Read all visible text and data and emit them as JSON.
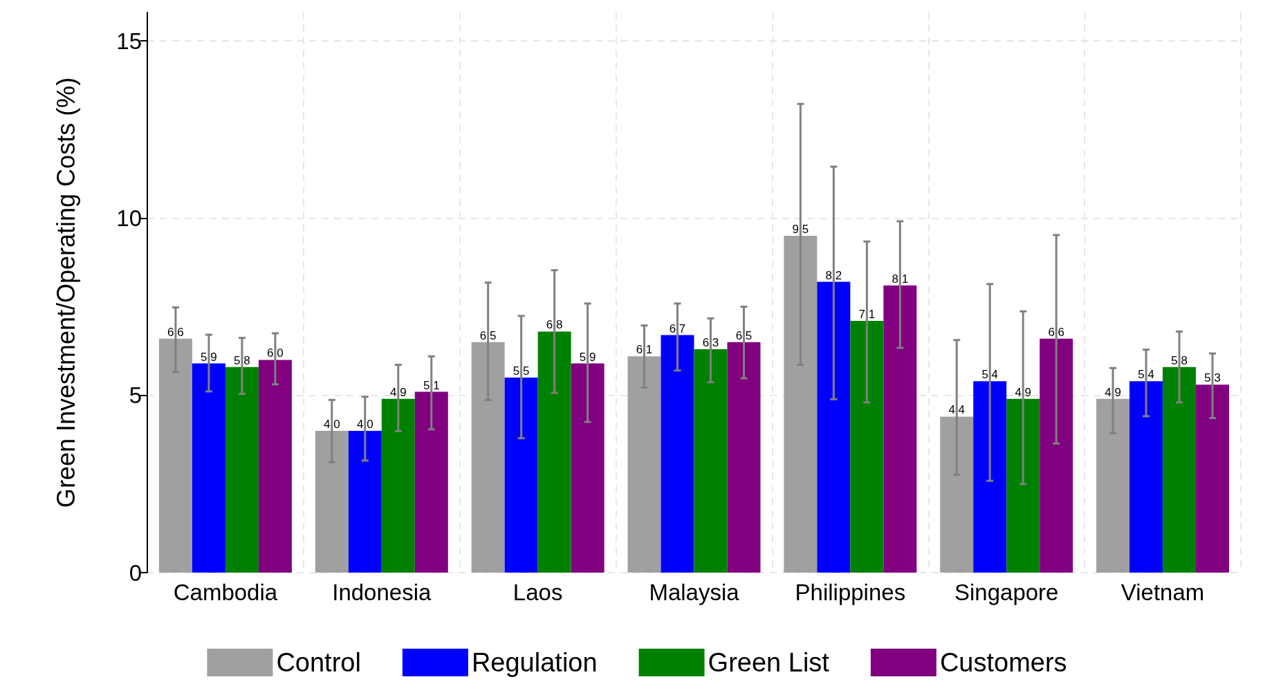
{
  "chart_data": {
    "type": "bar",
    "ylabel": "Green Investment/Operating Costs (%)",
    "categories": [
      "Cambodia",
      "Indonesia",
      "Laos",
      "Malaysia",
      "Philippines",
      "Singapore",
      "Vietnam"
    ],
    "ylim": [
      0,
      15.8
    ],
    "yticks": [
      0,
      5,
      10,
      15
    ],
    "grid": true,
    "legend": "bottom",
    "series": [
      {
        "name": "Control",
        "color": "#a0a0a0",
        "values": [
          6.6,
          4.0,
          6.5,
          6.1,
          9.5,
          4.4,
          4.9
        ],
        "value_labels": [
          "6.6",
          "4.0",
          "6.5",
          "6.1",
          "9.5",
          "4.4",
          "4.9"
        ],
        "errors": [
          [
            5.66,
            7.48
          ],
          [
            3.11,
            4.87
          ],
          [
            4.87,
            8.18
          ],
          [
            5.22,
            6.97
          ],
          [
            5.86,
            13.22
          ],
          [
            2.76,
            6.56
          ],
          [
            3.93,
            5.77
          ]
        ]
      },
      {
        "name": "Regulation",
        "color": "#0000ff",
        "values": [
          5.9,
          4.0,
          5.5,
          6.7,
          8.2,
          5.4,
          5.4
        ],
        "value_labels": [
          "5.9",
          "4.0",
          "5.5",
          "6.7",
          "8.2",
          "5.4",
          "5.4"
        ],
        "errors": [
          [
            5.11,
            6.71
          ],
          [
            3.16,
            4.96
          ],
          [
            3.79,
            7.24
          ],
          [
            5.7,
            7.59
          ],
          [
            4.89,
            11.45
          ],
          [
            2.59,
            8.14
          ],
          [
            4.41,
            6.29
          ]
        ]
      },
      {
        "name": "Green List",
        "color": "#008000",
        "values": [
          5.8,
          4.9,
          6.8,
          6.3,
          7.1,
          4.9,
          5.8
        ],
        "value_labels": [
          "5.8",
          "4.9",
          "6.8",
          "6.3",
          "7.1",
          "4.9",
          "5.8"
        ],
        "errors": [
          [
            5.04,
            6.62
          ],
          [
            3.99,
            5.86
          ],
          [
            5.07,
            8.53
          ],
          [
            5.37,
            7.17
          ],
          [
            4.8,
            9.34
          ],
          [
            2.5,
            7.37
          ],
          [
            4.8,
            6.8
          ]
        ]
      },
      {
        "name": "Customers",
        "color": "#800080",
        "values": [
          6.0,
          5.1,
          5.9,
          6.5,
          8.1,
          6.6,
          5.3
        ],
        "value_labels": [
          "6.0",
          "5.1",
          "5.9",
          "6.5",
          "8.1",
          "6.6",
          "5.3"
        ],
        "errors": [
          [
            5.31,
            6.75
          ],
          [
            4.04,
            6.1
          ],
          [
            4.25,
            7.59
          ],
          [
            5.48,
            7.5
          ],
          [
            6.34,
            9.91
          ],
          [
            3.64,
            9.52
          ],
          [
            4.36,
            6.18
          ]
        ]
      }
    ]
  }
}
